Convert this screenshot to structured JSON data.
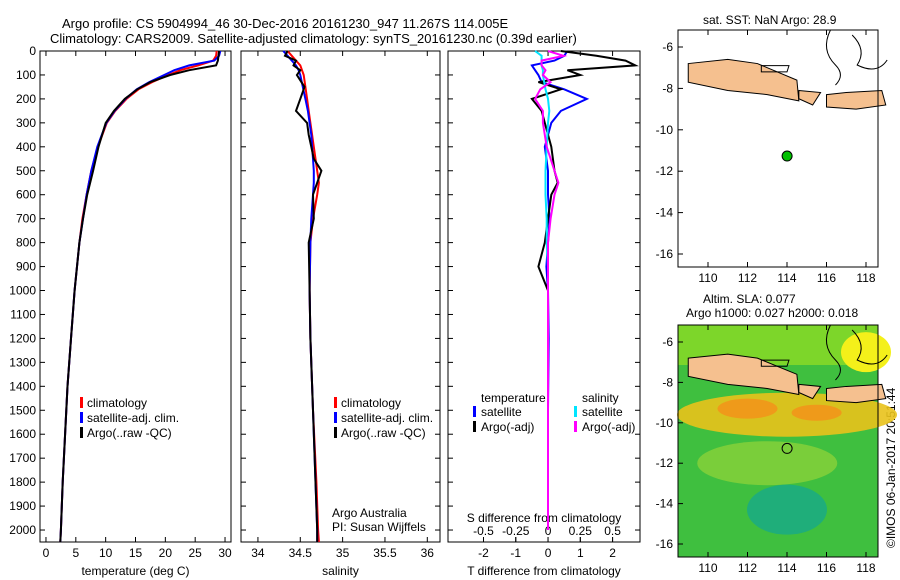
{
  "title_line1": "Argo profile: CS 5904994_46 30-Dec-2016 20161230_947 11.267S 114.005E",
  "title_line2": "Climatology: CARS2009. Satellite-adjusted climatology: synTS_20161230.nc (0.39d earlier)",
  "map1_title": "sat. SST: NaN Argo: 28.9",
  "map2_title1": "Altim. SLA: 0.077",
  "map2_title2": "Argo h1000: 0.027 h2000: 0.018",
  "credit": "©IMOS 06-Jan-2017 20:51:44",
  "annotation": [
    "Argo Australia",
    "PI: Susan Wijffels"
  ],
  "colors": {
    "climatology": "#ff0000",
    "satellite": "#0000ff",
    "argo": "#000000",
    "sal_satellite": "#00e5ff",
    "sal_argo": "#ff00ff",
    "land": "#f5c08f",
    "marker": "#00c000"
  },
  "chart_data": [
    {
      "type": "line",
      "xlabel": "temperature (deg C)",
      "ylabel": "",
      "xlim": [
        -1,
        31
      ],
      "ylim": [
        2050,
        0
      ],
      "xticks": [
        0,
        5,
        10,
        15,
        20,
        25,
        30
      ],
      "yticks": [
        0,
        100,
        200,
        300,
        400,
        500,
        600,
        700,
        800,
        900,
        1000,
        1100,
        1200,
        1300,
        1400,
        1500,
        1600,
        1700,
        1800,
        1900,
        2000
      ],
      "legend": [
        "climatology",
        "satellite-adj. clim.",
        "Argo(..raw -QC)"
      ],
      "depth": [
        0,
        20,
        40,
        60,
        80,
        100,
        130,
        160,
        200,
        250,
        300,
        400,
        500,
        600,
        700,
        800,
        1000,
        1200,
        1400,
        1600,
        1800,
        2000,
        2050
      ],
      "series": [
        {
          "name": "climatology",
          "values": [
            28.6,
            28.5,
            28.0,
            25.5,
            22.5,
            20.5,
            17.8,
            15.5,
            13.5,
            11.6,
            10.2,
            8.7,
            7.6,
            6.8,
            6.1,
            5.6,
            4.8,
            4.2,
            3.6,
            3.2,
            2.8,
            2.5,
            2.4
          ]
        },
        {
          "name": "satellite-adj. clim.",
          "values": [
            29.2,
            29.0,
            28.2,
            24.0,
            21.5,
            19.8,
            17.3,
            15.2,
            13.3,
            11.5,
            10.1,
            8.6,
            7.6,
            6.8,
            6.2,
            5.6,
            4.8,
            4.2,
            3.6,
            3.2,
            2.8,
            2.5,
            2.4
          ]
        },
        {
          "name": "Argo(..raw -QC)",
          "values": [
            29.0,
            28.9,
            28.8,
            28.5,
            24.0,
            20.8,
            17.5,
            15.3,
            13.2,
            11.4,
            10.0,
            8.8,
            7.9,
            6.9,
            6.2,
            5.6,
            4.8,
            4.2,
            3.6,
            3.2,
            2.8,
            2.5,
            2.4
          ]
        }
      ]
    },
    {
      "type": "line",
      "xlabel": "salinity",
      "xlim": [
        33.8,
        36.15
      ],
      "ylim": [
        2050,
        0
      ],
      "xticks": [
        34,
        34.5,
        35,
        35.5,
        36
      ],
      "legend": [
        "climatology",
        "satellite-adj. clim.",
        "Argo(..raw -QC)"
      ],
      "depth": [
        0,
        20,
        40,
        60,
        80,
        100,
        150,
        200,
        250,
        300,
        350,
        400,
        450,
        500,
        550,
        600,
        700,
        800,
        1000,
        1200,
        1500,
        1800,
        2000,
        2050
      ],
      "series": [
        {
          "name": "climatology",
          "values": [
            34.35,
            34.4,
            34.45,
            34.5,
            34.52,
            34.54,
            34.56,
            34.58,
            34.6,
            34.62,
            34.64,
            34.66,
            34.68,
            34.7,
            34.72,
            34.7,
            34.65,
            34.62,
            34.61,
            34.62,
            34.65,
            34.69,
            34.71,
            34.72
          ]
        },
        {
          "name": "satellite-adj. clim.",
          "values": [
            34.3,
            34.35,
            34.4,
            34.45,
            34.48,
            34.5,
            34.53,
            34.56,
            34.59,
            34.61,
            34.63,
            34.64,
            34.65,
            34.66,
            34.66,
            34.65,
            34.63,
            34.62,
            34.61,
            34.62,
            34.65,
            34.68,
            34.7,
            34.7
          ]
        },
        {
          "name": "Argo(..raw -QC)",
          "values": [
            34.35,
            34.32,
            34.45,
            34.42,
            34.5,
            34.46,
            34.55,
            34.5,
            34.45,
            34.58,
            34.6,
            34.63,
            34.66,
            34.75,
            34.7,
            34.65,
            34.66,
            34.6,
            34.61,
            34.62,
            34.65,
            34.68,
            34.7,
            34.7
          ]
        }
      ]
    },
    {
      "type": "line",
      "xlabel": "T difference from climatology",
      "x2label": "S difference from climatology",
      "xlim": [
        -3.1,
        2.85
      ],
      "x2lim": [
        -0.775,
        0.7125
      ],
      "ylim": [
        2050,
        0
      ],
      "xticks": [
        -2,
        -1,
        0,
        1,
        2
      ],
      "x2ticks": [
        -0.5,
        -0.25,
        0,
        0.25,
        0.5
      ],
      "x2ticklabels": [
        "-0.5",
        "-0.25",
        "0",
        "0.25",
        "0.5"
      ],
      "legend_headers": [
        "temperature",
        "salinity"
      ],
      "legend": [
        "satellite",
        "Argo(-adj)",
        "satellite",
        "Argo(-adj)"
      ],
      "depth": [
        0,
        20,
        40,
        60,
        80,
        100,
        130,
        160,
        200,
        250,
        300,
        400,
        500,
        550,
        600,
        700,
        800,
        900,
        1000,
        1200,
        1500,
        1800,
        2000
      ],
      "series": [
        {
          "name": "temperature satellite",
          "axis": "T",
          "values": [
            0.6,
            0.5,
            0.2,
            -0.5,
            -0.4,
            -0.3,
            -0.2,
            0.5,
            1.2,
            0.4,
            0.1,
            -0.1,
            0,
            0,
            0,
            0.05,
            0,
            -0.05,
            0,
            0.02,
            0,
            0,
            0
          ]
        },
        {
          "name": "temperature Argo(-adj)",
          "axis": "T",
          "values": [
            0.4,
            1.5,
            2.4,
            2.7,
            0.6,
            1.0,
            -0.3,
            0.4,
            -0.5,
            -0.2,
            -0.1,
            0.1,
            0.2,
            0.3,
            0.1,
            0,
            -0.1,
            -0.3,
            0,
            0,
            0,
            0,
            0
          ]
        },
        {
          "name": "salinity satellite",
          "axis": "S",
          "values": [
            -0.1,
            -0.05,
            -0.05,
            -0.05,
            -0.04,
            -0.04,
            -0.03,
            -0.02,
            0,
            0.01,
            0,
            -0.01,
            -0.02,
            -0.02,
            -0.02,
            -0.01,
            -0.01,
            0,
            0,
            0,
            0,
            0,
            0
          ]
        },
        {
          "name": "salinity Argo(-adj)",
          "axis": "S",
          "values": [
            0,
            0.12,
            -0.05,
            -0.05,
            -0.02,
            -0.04,
            0.02,
            -0.06,
            -0.1,
            -0.04,
            -0.04,
            -0.01,
            0.05,
            0.08,
            0.05,
            0.02,
            0,
            0,
            0,
            0,
            0,
            0,
            0
          ]
        }
      ]
    }
  ],
  "maps": {
    "lon_ticks": [
      110,
      112,
      114,
      116,
      118
    ],
    "lat_ticks": [
      -6,
      -8,
      -10,
      -12,
      -14,
      -16
    ],
    "argo_position": {
      "lon": 114.005,
      "lat": -11.267
    }
  }
}
